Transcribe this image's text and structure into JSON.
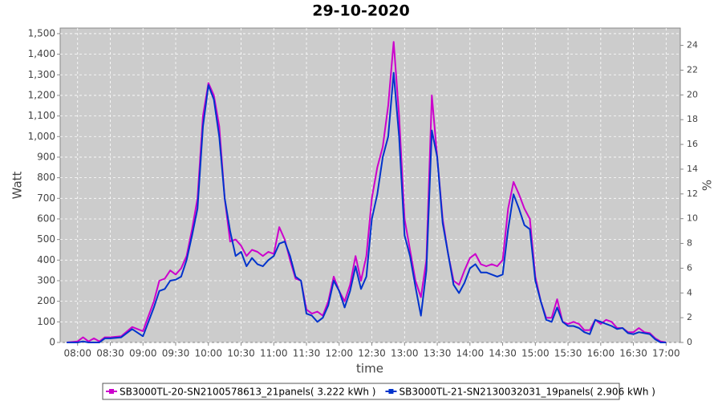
{
  "chart_data": {
    "type": "line",
    "title": "29-10-2020",
    "x_label": "time",
    "y_label": "Watt",
    "y2_label": "%",
    "x": [
      "07:50",
      "08:00",
      "08:05",
      "08:10",
      "08:15",
      "08:20",
      "08:25",
      "08:30",
      "08:40",
      "08:50",
      "09:00",
      "09:10",
      "09:15",
      "09:20",
      "09:25",
      "09:30",
      "09:35",
      "09:40",
      "09:45",
      "09:50",
      "09:55",
      "10:00",
      "10:05",
      "10:10",
      "10:15",
      "10:20",
      "10:25",
      "10:30",
      "10:35",
      "10:40",
      "10:45",
      "10:50",
      "10:55",
      "11:00",
      "11:05",
      "11:10",
      "11:15",
      "11:20",
      "11:25",
      "11:30",
      "11:35",
      "11:40",
      "11:45",
      "11:50",
      "11:55",
      "12:00",
      "12:05",
      "12:10",
      "12:15",
      "12:20",
      "12:25",
      "12:30",
      "12:35",
      "12:40",
      "12:45",
      "12:50",
      "12:55",
      "13:00",
      "13:05",
      "13:10",
      "13:15",
      "13:20",
      "13:25",
      "13:30",
      "13:35",
      "13:40",
      "13:45",
      "13:50",
      "13:55",
      "14:00",
      "14:05",
      "14:10",
      "14:15",
      "14:20",
      "14:25",
      "14:30",
      "14:35",
      "14:40",
      "14:45",
      "14:50",
      "14:55",
      "15:00",
      "15:05",
      "15:10",
      "15:15",
      "15:20",
      "15:25",
      "15:30",
      "15:35",
      "15:40",
      "15:45",
      "15:50",
      "15:55",
      "16:00",
      "16:05",
      "16:10",
      "16:15",
      "16:20",
      "16:25",
      "16:30",
      "16:35",
      "16:40",
      "16:45",
      "16:50",
      "16:55",
      "17:00"
    ],
    "series": [
      {
        "name": "SB3000TL-20-SN2100578613_21panels( 3.222 kWh )",
        "color": "#cc00cc",
        "values": [
          0,
          5,
          25,
          5,
          20,
          5,
          25,
          25,
          30,
          75,
          55,
          200,
          300,
          310,
          350,
          330,
          360,
          420,
          550,
          700,
          1100,
          1260,
          1200,
          1050,
          700,
          490,
          500,
          470,
          420,
          450,
          440,
          420,
          440,
          430,
          560,
          500,
          400,
          310,
          300,
          160,
          140,
          150,
          130,
          200,
          320,
          250,
          200,
          280,
          420,
          300,
          420,
          700,
          850,
          950,
          1150,
          1460,
          1100,
          600,
          450,
          300,
          220,
          400,
          1200,
          900,
          600,
          430,
          300,
          280,
          350,
          410,
          430,
          380,
          370,
          380,
          370,
          400,
          650,
          780,
          720,
          650,
          600,
          320,
          200,
          120,
          120,
          210,
          100,
          90,
          100,
          90,
          60,
          60,
          110,
          90,
          110,
          100,
          70,
          70,
          50,
          50,
          70,
          50,
          45,
          20,
          5,
          0
        ]
      },
      {
        "name": "SB3000TL-21-SN2130032031_19panels( 2.906 kWh )",
        "color": "#0033cc",
        "values": [
          0,
          0,
          5,
          0,
          0,
          0,
          20,
          20,
          25,
          65,
          30,
          170,
          250,
          260,
          300,
          305,
          320,
          400,
          520,
          650,
          1050,
          1250,
          1180,
          1000,
          700,
          540,
          420,
          440,
          370,
          410,
          380,
          370,
          400,
          420,
          480,
          490,
          420,
          320,
          300,
          140,
          130,
          100,
          120,
          180,
          300,
          250,
          170,
          250,
          370,
          260,
          320,
          600,
          720,
          900,
          1000,
          1310,
          1000,
          520,
          420,
          270,
          130,
          350,
          1030,
          900,
          580,
          430,
          280,
          240,
          290,
          360,
          380,
          340,
          340,
          330,
          320,
          330,
          550,
          720,
          650,
          570,
          550,
          300,
          200,
          110,
          100,
          170,
          100,
          80,
          80,
          70,
          50,
          40,
          110,
          100,
          90,
          80,
          65,
          70,
          45,
          40,
          50,
          45,
          40,
          15,
          0,
          0
        ]
      }
    ],
    "xlim": [
      "07:44",
      "17:13"
    ],
    "xticks": [
      "08:00",
      "08:30",
      "09:00",
      "09:30",
      "10:00",
      "10:30",
      "11:00",
      "11:30",
      "12:00",
      "12:30",
      "13:00",
      "13:30",
      "14:00",
      "14:30",
      "15:00",
      "15:30",
      "16:00",
      "16:30",
      "17:00"
    ],
    "ylim": [
      0,
      1527
    ],
    "yticks": [
      0,
      100,
      200,
      300,
      400,
      500,
      600,
      700,
      800,
      900,
      {
        "value": 1000,
        "label": "1,000"
      },
      {
        "value": 1100,
        "label": "1,100"
      },
      {
        "value": 1200,
        "label": "1,200"
      },
      {
        "value": 1300,
        "label": "1,300"
      },
      {
        "value": 1400,
        "label": "1,400"
      },
      {
        "value": 1500,
        "label": "1,500"
      }
    ],
    "y2lim": [
      0,
      25.4
    ],
    "y2ticks": [
      0,
      2,
      4,
      6,
      8,
      10,
      12,
      14,
      16,
      18,
      20,
      22,
      24
    ],
    "grid": true,
    "legend": "bottom"
  }
}
